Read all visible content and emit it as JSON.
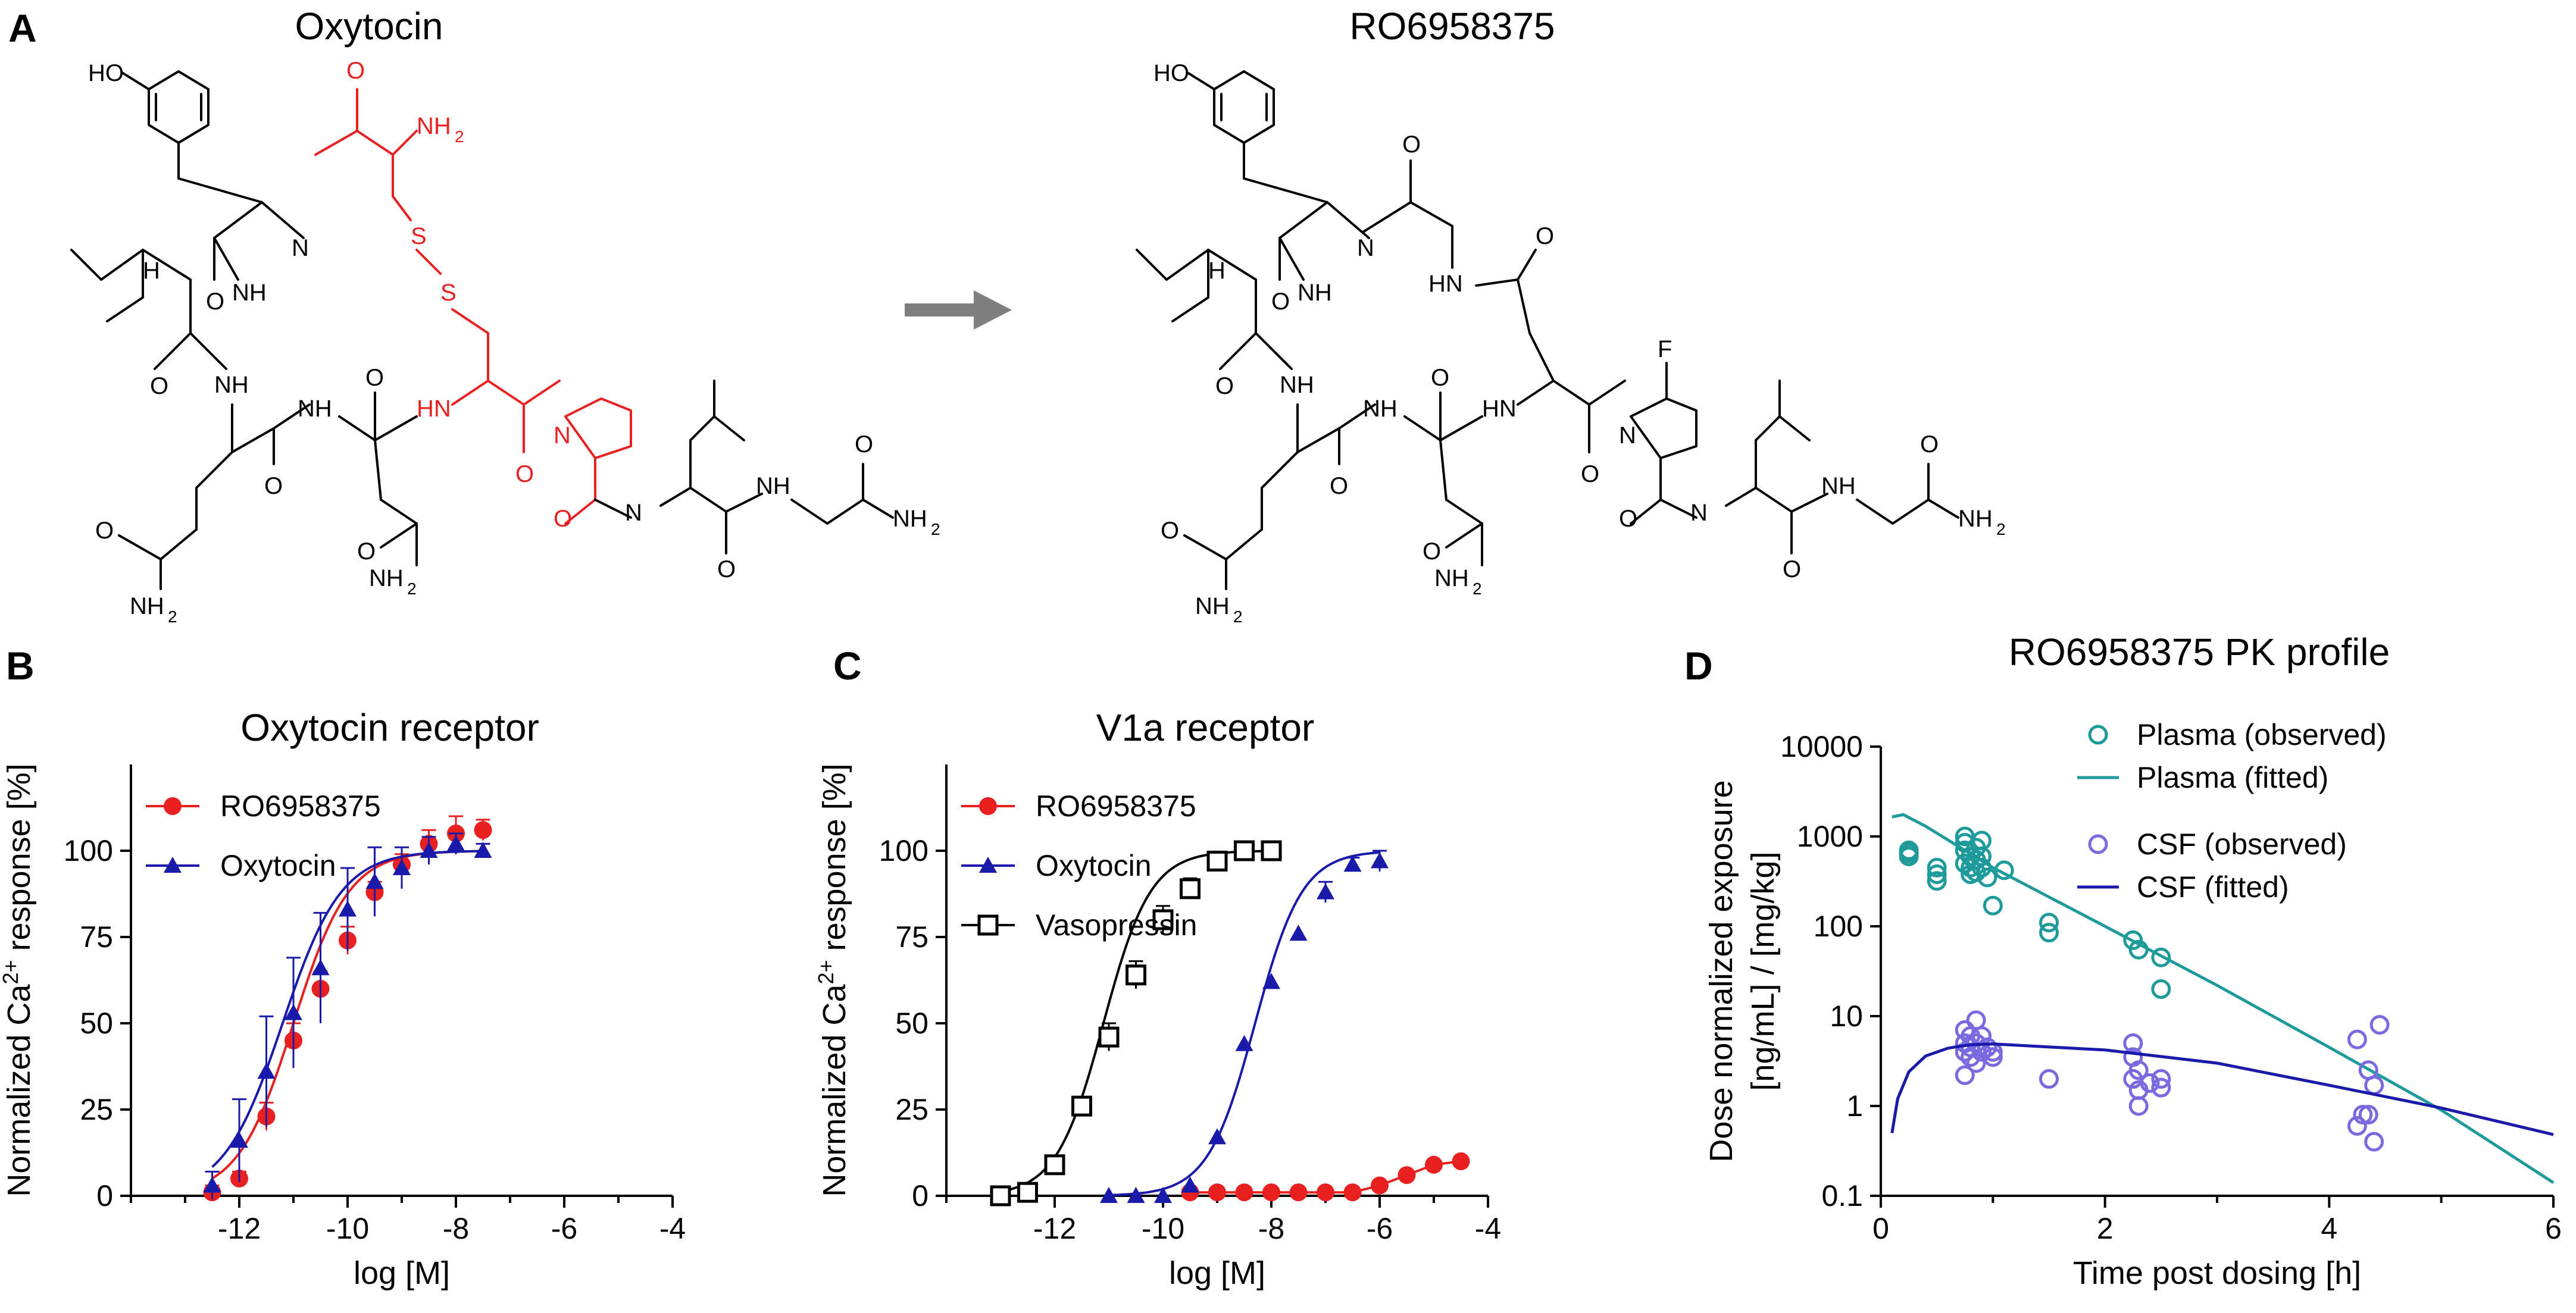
{
  "panels": {
    "A": {
      "letter": "A",
      "left_title": "Oxytocin",
      "right_title": "RO6958375"
    },
    "B": {
      "letter": "B"
    },
    "C": {
      "letter": "C"
    },
    "D": {
      "letter": "D"
    }
  },
  "chem_labels": {
    "ho": "HO",
    "h": "H",
    "nh": "NH",
    "n": "N",
    "hn": "HN",
    "o": "O",
    "s": "S",
    "f": "F",
    "nh2": "NH",
    "sub2": "2"
  },
  "colors": {
    "ro6958375": "#e8201f",
    "oxytocin": "#1a1aaa",
    "vasopressin": "#000000",
    "plasma": "#1f9a9a",
    "csf_observed": "#7a6ae0",
    "csf_fitted": "#1a1aaa",
    "highlight": "#e8201f",
    "arrow": "#7f7f7f"
  },
  "chart_data": [
    {
      "panel": "B",
      "type": "line",
      "title": "Oxytocin receptor",
      "xlabel": "log [M]",
      "ylabel": "Normalized Ca2+ response [%]",
      "ylabel_main": "Normalized Ca",
      "ylabel_sup": "2+",
      "ylabel_rest": " response [%]",
      "xlim": [
        -14,
        -4
      ],
      "ylim": [
        0,
        125
      ],
      "xticks": [
        -12,
        -10,
        -8,
        -6,
        -4
      ],
      "yticks": [
        0,
        25,
        50,
        75,
        100
      ],
      "legend_position": "top-left",
      "series": [
        {
          "name": "RO6958375",
          "marker": "circle",
          "color": "#e8201f",
          "x": [
            -12.5,
            -12,
            -11.5,
            -11,
            -10.5,
            -10,
            -9.5,
            -9,
            -8.5,
            -8,
            -7.5
          ],
          "y": [
            1,
            5,
            23,
            45,
            60,
            74,
            88,
            96,
            102,
            105,
            106
          ],
          "err": [
            2,
            2,
            4,
            5,
            5,
            4,
            3,
            3,
            4,
            5,
            3
          ],
          "ec50": -11.0,
          "hill": 0.85
        },
        {
          "name": "Oxytocin",
          "marker": "triangle",
          "color": "#1a1aaa",
          "x": [
            -12.5,
            -12,
            -11.5,
            -11,
            -10.5,
            -10,
            -9.5,
            -9,
            -8.5,
            -8,
            -7.5
          ],
          "y": [
            3,
            16,
            36,
            53,
            66,
            83,
            91,
            95,
            100,
            102,
            100
          ],
          "err": [
            4,
            12,
            16,
            16,
            16,
            12,
            10,
            6,
            4,
            3,
            2
          ],
          "ec50": -11.2,
          "hill": 0.8
        }
      ]
    },
    {
      "panel": "C",
      "type": "line",
      "title": "V1a receptor",
      "xlabel": "log [M]",
      "ylabel": "Normalized Ca2+ response [%]",
      "ylabel_main": "Normalized Ca",
      "ylabel_sup": "2+",
      "ylabel_rest": " response [%]",
      "xlim": [
        -14,
        -4
      ],
      "ylim": [
        0,
        125
      ],
      "xticks": [
        -12,
        -10,
        -8,
        -6,
        -4
      ],
      "yticks": [
        0,
        25,
        50,
        75,
        100
      ],
      "legend_position": "top-left",
      "series": [
        {
          "name": "RO6958375",
          "marker": "circle",
          "color": "#e8201f",
          "x": [
            -9.5,
            -9,
            -8.5,
            -8,
            -7.5,
            -7,
            -6.5,
            -6,
            -5.5,
            -5,
            -4.5
          ],
          "y": [
            1,
            1,
            1,
            1,
            1,
            1,
            1,
            3,
            6,
            9,
            10
          ],
          "err": [
            0,
            0,
            0,
            0,
            0,
            0,
            0,
            0,
            0,
            0,
            0
          ]
        },
        {
          "name": "Oxytocin",
          "marker": "triangle",
          "color": "#1a1aaa",
          "x": [
            -11,
            -10.5,
            -10,
            -9.5,
            -9,
            -8.5,
            -8,
            -7.5,
            -7,
            -6.5,
            -6
          ],
          "y": [
            0,
            0,
            0,
            3,
            17,
            44,
            62,
            76,
            88,
            96,
            97
          ],
          "err": [
            0,
            0,
            0,
            0,
            0,
            0,
            0,
            0,
            3,
            2,
            3
          ],
          "ec50": -8.3,
          "hill": 1.0
        },
        {
          "name": "Vasopressin",
          "marker": "square",
          "color": "#000000",
          "x": [
            -13,
            -12.5,
            -12,
            -11.5,
            -11,
            -10.5,
            -10,
            -9.5,
            -9,
            -8.5,
            -8
          ],
          "y": [
            0,
            1,
            9,
            26,
            46,
            64,
            80,
            89,
            97,
            100,
            100
          ],
          "err": [
            0,
            0,
            0,
            2,
            4,
            4,
            4,
            3,
            2,
            0,
            0
          ],
          "ec50": -11.1,
          "hill": 1.0
        }
      ]
    },
    {
      "panel": "D",
      "type": "scatter",
      "title": "RO6958375 PK profile",
      "xlabel": "Time post dosing [h]",
      "ylabel_line1": "Dose normalized exposure",
      "ylabel_line2": "[ng/mL] / [mg/kg]",
      "xlim": [
        0,
        6
      ],
      "ylim": [
        0.1,
        10000
      ],
      "yscale": "log",
      "xticks": [
        0,
        2,
        4,
        6
      ],
      "yticks": [
        0.1,
        1,
        10,
        100,
        1000,
        10000
      ],
      "ytick_labels": [
        "0.1",
        "1",
        "10",
        "100",
        "1000",
        "10000"
      ],
      "legend_position": "top-right",
      "series": [
        {
          "name": "Plasma (observed)",
          "marker": "open-circle",
          "color": "#1f9a9a",
          "x": [
            0.25,
            0.25,
            0.25,
            0.5,
            0.5,
            0.5,
            0.75,
            0.75,
            0.75,
            0.75,
            0.8,
            0.8,
            0.8,
            0.85,
            0.85,
            0.85,
            0.9,
            0.9,
            0.9,
            0.95,
            1.0,
            1.1,
            1.5,
            1.5,
            2.25,
            2.3,
            2.5,
            2.5
          ],
          "y": [
            700,
            600,
            650,
            450,
            380,
            320,
            1000,
            850,
            700,
            500,
            600,
            450,
            380,
            750,
            550,
            400,
            900,
            600,
            450,
            350,
            170,
            420,
            110,
            85,
            70,
            55,
            45,
            20
          ]
        },
        {
          "name": "Plasma (fitted)",
          "marker": "line",
          "color": "#1f9a9a",
          "x": [
            0.1,
            0.2,
            0.4,
            1,
            2,
            3,
            4,
            5,
            6
          ],
          "y": [
            1650,
            1750,
            1300,
            450,
            100,
            22,
            4.5,
            0.9,
            0.14
          ]
        },
        {
          "name": "CSF (observed)",
          "marker": "open-circle",
          "color": "#7a6ae0",
          "x": [
            0.75,
            0.75,
            0.75,
            0.75,
            0.8,
            0.8,
            0.8,
            0.85,
            0.85,
            0.85,
            0.9,
            0.9,
            0.95,
            1.0,
            1.0,
            1.5,
            2.25,
            2.25,
            2.25,
            2.3,
            2.3,
            2.3,
            2.4,
            2.5,
            2.5,
            4.25,
            4.25,
            4.3,
            4.35,
            4.35,
            4.4,
            4.4,
            4.45
          ],
          "y": [
            7,
            5,
            4,
            2.2,
            6,
            4.5,
            3.5,
            9,
            5,
            3,
            6,
            4,
            4.5,
            4,
            3.5,
            2,
            5,
            3.5,
            2,
            2.5,
            1.5,
            1.0,
            1.8,
            1.6,
            2,
            5.5,
            0.6,
            0.8,
            2.5,
            0.8,
            1.7,
            0.4,
            8
          ]
        },
        {
          "name": "CSF (fitted)",
          "marker": "line",
          "color": "#1a1aaa",
          "x": [
            0.1,
            0.15,
            0.25,
            0.4,
            0.6,
            0.8,
            1.0,
            2,
            3,
            4,
            5,
            6
          ],
          "y": [
            0.5,
            1.2,
            2.4,
            3.6,
            4.4,
            4.8,
            4.9,
            4.2,
            3.0,
            1.7,
            0.95,
            0.48
          ]
        }
      ]
    }
  ]
}
